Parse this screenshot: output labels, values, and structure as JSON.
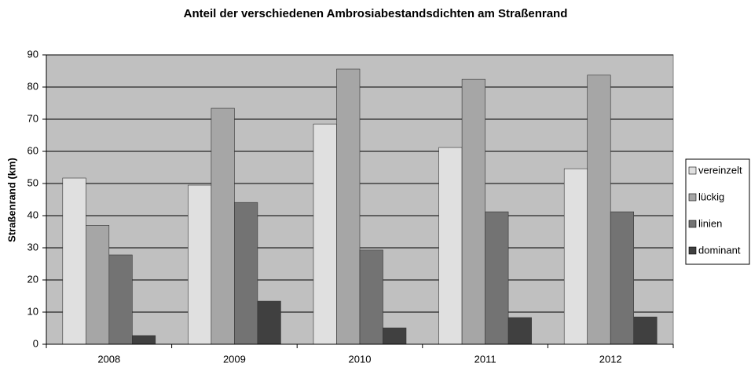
{
  "chart_data": {
    "type": "bar",
    "title": "Anteil der verschiedenen Ambrosiabestandsdichten am Straßenrand",
    "y_label": "Straßenrand (km)",
    "categories": [
      "2008",
      "2009",
      "2010",
      "2011",
      "2012"
    ],
    "series": [
      {
        "name": "vereinzelt",
        "color": "#e0e0e0",
        "values": [
          51.7,
          49.5,
          68.5,
          61.2,
          54.6
        ]
      },
      {
        "name": "lückig",
        "color": "#a6a6a6",
        "values": [
          37,
          73.4,
          85.6,
          82.4,
          83.7
        ]
      },
      {
        "name": "linien",
        "color": "#737373",
        "values": [
          27.8,
          44.1,
          29.3,
          41.2,
          41.2
        ]
      },
      {
        "name": "dominant",
        "color": "#404040",
        "values": [
          2.7,
          13.4,
          5.1,
          8.3,
          8.5
        ]
      }
    ],
    "ylim": [
      0,
      90
    ],
    "yticks": [
      0,
      10,
      20,
      30,
      40,
      50,
      60,
      70,
      80,
      90
    ],
    "grid": true,
    "legend": "right"
  }
}
